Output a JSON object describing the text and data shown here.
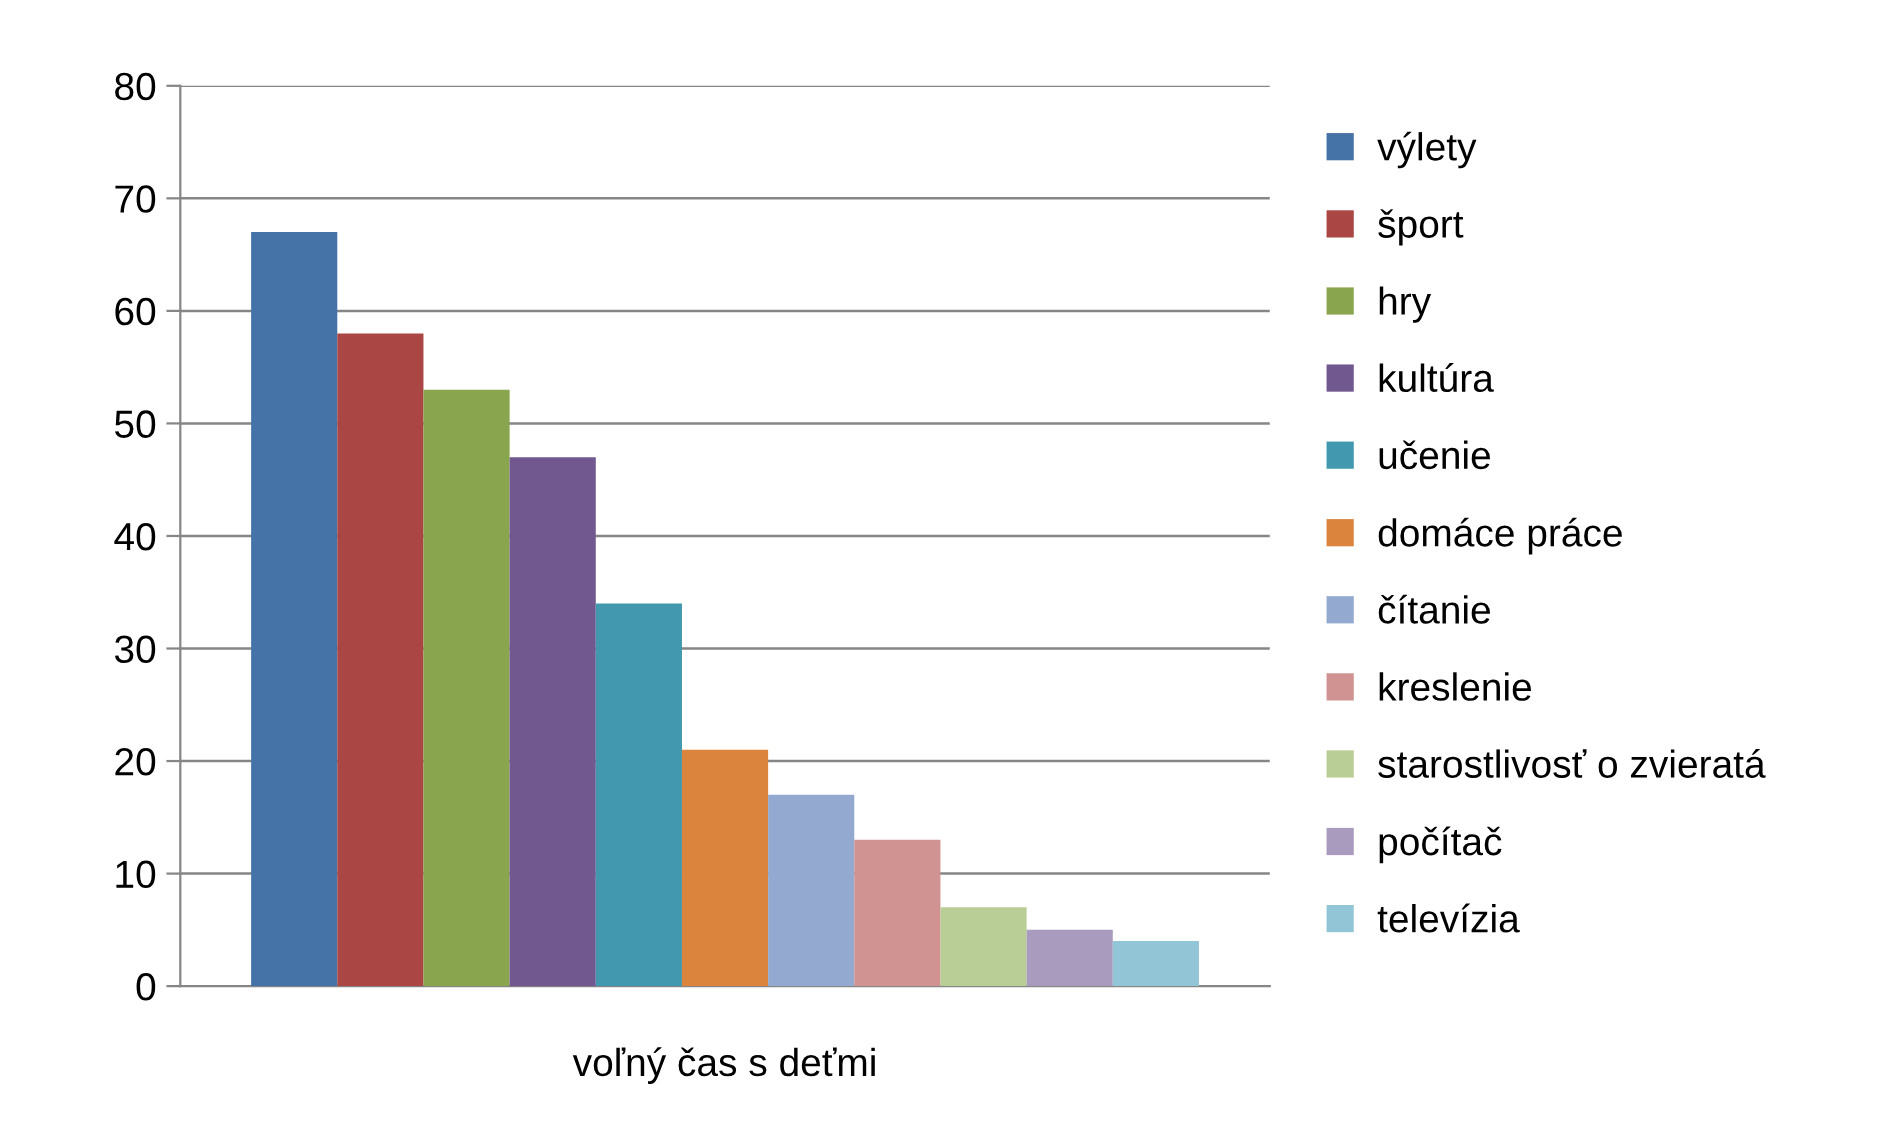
{
  "chart_data": {
    "type": "bar",
    "categories": [
      "voľný čas s deťmi"
    ],
    "series": [
      {
        "name": "výlety",
        "color": "#4572a7",
        "values": [
          67
        ]
      },
      {
        "name": "šport",
        "color": "#aa4643",
        "values": [
          58
        ]
      },
      {
        "name": "hry",
        "color": "#89a54e",
        "values": [
          53
        ]
      },
      {
        "name": "kultúra",
        "color": "#71588f",
        "values": [
          47
        ]
      },
      {
        "name": "učenie",
        "color": "#4198af",
        "values": [
          34
        ]
      },
      {
        "name": "domáce práce",
        "color": "#db843d",
        "values": [
          21
        ]
      },
      {
        "name": "čítanie",
        "color": "#93a9cf",
        "values": [
          17
        ]
      },
      {
        "name": "kreslenie",
        "color": "#d19392",
        "values": [
          13
        ]
      },
      {
        "name": "starostlivosť o zvieratá",
        "color": "#b9cd96",
        "values": [
          7
        ]
      },
      {
        "name": "počítač",
        "color": "#a99bbd",
        "values": [
          5
        ]
      },
      {
        "name": "televízia",
        "color": "#92c5d6",
        "values": [
          4
        ]
      }
    ],
    "ylim": [
      0,
      80
    ],
    "yticks": [
      0,
      10,
      20,
      30,
      40,
      50,
      60,
      70,
      80
    ],
    "grid": "y",
    "legend": "right"
  }
}
